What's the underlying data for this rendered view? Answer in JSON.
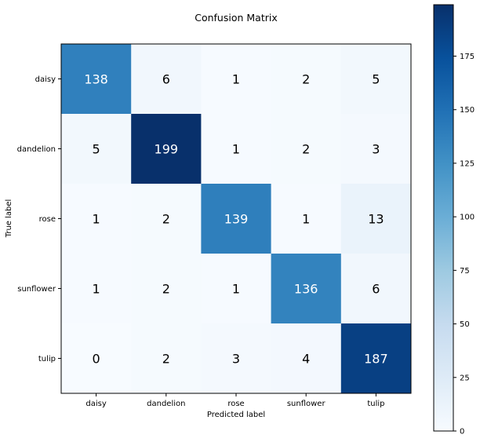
{
  "chart_data": {
    "type": "heatmap",
    "title": "Confusion Matrix",
    "xlabel": "Predicted label",
    "ylabel": "True label",
    "x_categories": [
      "daisy",
      "dandelion",
      "rose",
      "sunflower",
      "tulip"
    ],
    "y_categories": [
      "daisy",
      "dandelion",
      "rose",
      "sunflower",
      "tulip"
    ],
    "values": [
      [
        138,
        6,
        1,
        2,
        5
      ],
      [
        5,
        199,
        1,
        2,
        3
      ],
      [
        1,
        2,
        139,
        1,
        13
      ],
      [
        1,
        2,
        1,
        136,
        6
      ],
      [
        0,
        2,
        3,
        4,
        187
      ]
    ],
    "colormap": "Blues",
    "colorbar": {
      "min": 0,
      "max": 199,
      "ticks": [
        0,
        25,
        50,
        75,
        100,
        125,
        150,
        175
      ]
    },
    "colors": {
      "low": "#f7fbff",
      "high": "#08306b",
      "text_dark": "#000000",
      "text_light": "#ffffff"
    }
  }
}
